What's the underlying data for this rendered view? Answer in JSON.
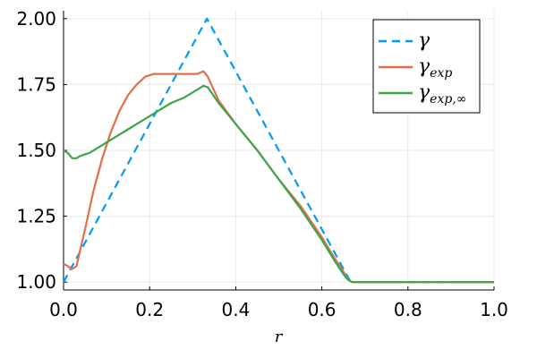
{
  "chart_data": {
    "type": "line",
    "title": "",
    "xlabel": "r",
    "ylabel": "",
    "xlim": [
      0.0,
      1.0
    ],
    "ylim": [
      0.97,
      2.03
    ],
    "grid": true,
    "legend_position": "top-right",
    "x_ticks": [
      0.0,
      0.2,
      0.4,
      0.6,
      0.8,
      1.0
    ],
    "x_tick_labels": [
      "0.0",
      "0.2",
      "0.4",
      "0.6",
      "0.8",
      "1.0"
    ],
    "y_ticks": [
      1.0,
      1.25,
      1.5,
      1.75,
      2.0
    ],
    "y_tick_labels": [
      "1.00",
      "1.25",
      "1.50",
      "1.75",
      "2.00"
    ],
    "series": [
      {
        "name": "γ",
        "name_base": "γ",
        "name_sub": "",
        "color": "#009AFA",
        "dash": "dashed",
        "points": [
          [
            0.0,
            1.0
          ],
          [
            0.333,
            2.0
          ],
          [
            0.667,
            1.0
          ],
          [
            1.0,
            1.0
          ]
        ]
      },
      {
        "name": "γ_exp",
        "name_base": "γ",
        "name_sub": "exp",
        "color": "#E26F46",
        "dash": "solid",
        "points": [
          [
            0.0,
            1.07
          ],
          [
            0.01,
            1.06
          ],
          [
            0.02,
            1.05
          ],
          [
            0.03,
            1.06
          ],
          [
            0.05,
            1.2
          ],
          [
            0.07,
            1.35
          ],
          [
            0.09,
            1.47
          ],
          [
            0.11,
            1.57
          ],
          [
            0.13,
            1.65
          ],
          [
            0.15,
            1.71
          ],
          [
            0.17,
            1.75
          ],
          [
            0.19,
            1.78
          ],
          [
            0.21,
            1.79
          ],
          [
            0.25,
            1.79
          ],
          [
            0.28,
            1.79
          ],
          [
            0.31,
            1.79
          ],
          [
            0.325,
            1.8
          ],
          [
            0.335,
            1.78
          ],
          [
            0.36,
            1.69
          ],
          [
            0.4,
            1.6
          ],
          [
            0.45,
            1.5
          ],
          [
            0.5,
            1.39
          ],
          [
            0.55,
            1.29
          ],
          [
            0.6,
            1.17
          ],
          [
            0.63,
            1.09
          ],
          [
            0.65,
            1.04
          ],
          [
            0.66,
            1.01
          ],
          [
            0.67,
            1.0
          ],
          [
            0.69,
            1.0
          ],
          [
            1.0,
            1.0
          ]
        ]
      },
      {
        "name": "γ_exp,∞",
        "name_base": "γ",
        "name_sub": "exp,∞",
        "color": "#3DA44D",
        "dash": "solid",
        "points": [
          [
            0.0,
            1.5
          ],
          [
            0.01,
            1.49
          ],
          [
            0.02,
            1.47
          ],
          [
            0.03,
            1.47
          ],
          [
            0.04,
            1.48
          ],
          [
            0.06,
            1.49
          ],
          [
            0.08,
            1.51
          ],
          [
            0.1,
            1.53
          ],
          [
            0.13,
            1.56
          ],
          [
            0.16,
            1.59
          ],
          [
            0.19,
            1.62
          ],
          [
            0.22,
            1.65
          ],
          [
            0.25,
            1.68
          ],
          [
            0.28,
            1.7
          ],
          [
            0.31,
            1.73
          ],
          [
            0.325,
            1.745
          ],
          [
            0.335,
            1.74
          ],
          [
            0.36,
            1.68
          ],
          [
            0.4,
            1.6
          ],
          [
            0.45,
            1.5
          ],
          [
            0.5,
            1.39
          ],
          [
            0.55,
            1.28
          ],
          [
            0.6,
            1.16
          ],
          [
            0.63,
            1.08
          ],
          [
            0.65,
            1.03
          ],
          [
            0.66,
            1.01
          ],
          [
            0.67,
            1.0
          ],
          [
            0.69,
            1.0
          ],
          [
            1.0,
            1.0
          ]
        ]
      }
    ]
  }
}
